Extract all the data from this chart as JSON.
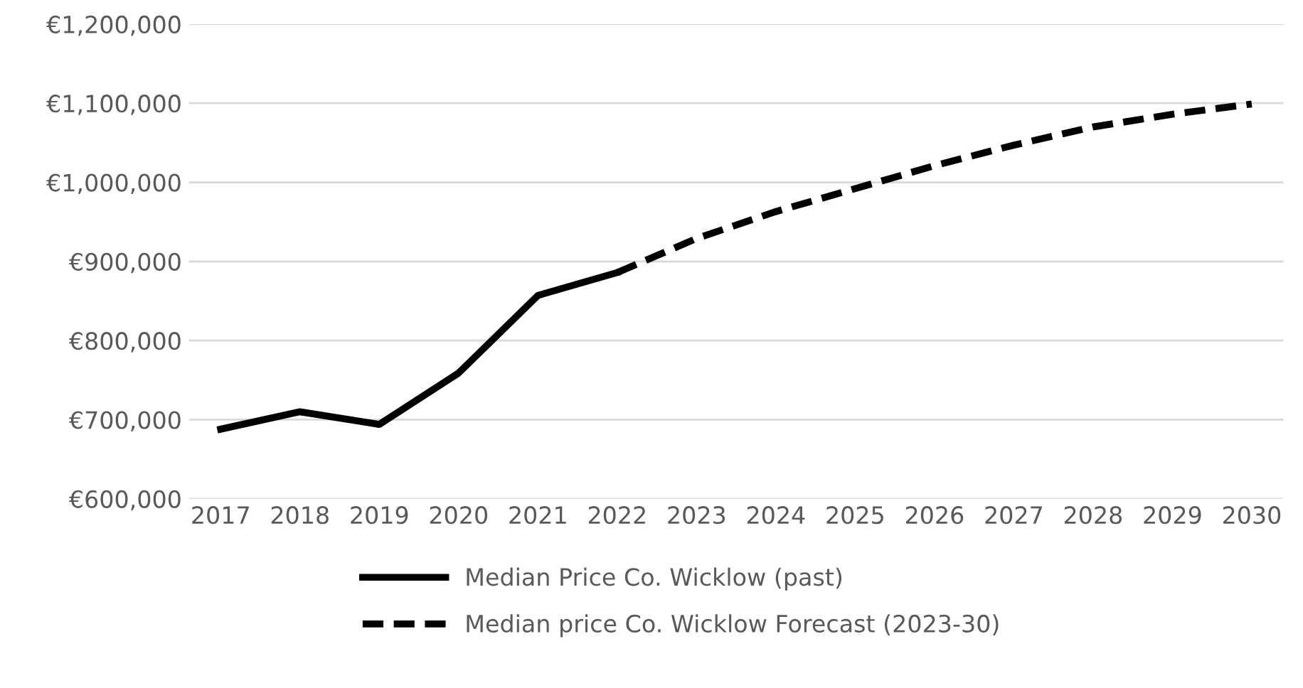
{
  "chart_data": {
    "type": "line",
    "categories": [
      "2017",
      "2018",
      "2019",
      "2020",
      "2021",
      "2022",
      "2023",
      "2024",
      "2025",
      "2026",
      "2027",
      "2028",
      "2029",
      "2030"
    ],
    "series": [
      {
        "name": "Median Price Co. Wicklow (past)",
        "color": "#000000",
        "line_style": "solid",
        "values": [
          688000,
          710000,
          694000,
          759000,
          857000,
          886000,
          null,
          null,
          null,
          null,
          null,
          null,
          null,
          null
        ]
      },
      {
        "name": "Median price Co. Wicklow Forecast (2023-30)",
        "color": "#000000",
        "line_style": "dashed",
        "values": [
          null,
          null,
          null,
          null,
          null,
          886000,
          929000,
          963000,
          992000,
          1021000,
          1047000,
          1070000,
          1086000,
          1099000
        ]
      }
    ],
    "ylim": [
      600000,
      1200000
    ],
    "yticks": [
      {
        "value": 600000,
        "label": "€600,000"
      },
      {
        "value": 700000,
        "label": "€700,000"
      },
      {
        "value": 800000,
        "label": "€800,000"
      },
      {
        "value": 900000,
        "label": "€900,000"
      },
      {
        "value": 1000000,
        "label": "€1,000,000"
      },
      {
        "value": 1100000,
        "label": "€1,100,000"
      },
      {
        "value": 1200000,
        "label": "€1,200,000"
      }
    ],
    "grid": "y",
    "legend": "bottom",
    "marker": "none"
  }
}
